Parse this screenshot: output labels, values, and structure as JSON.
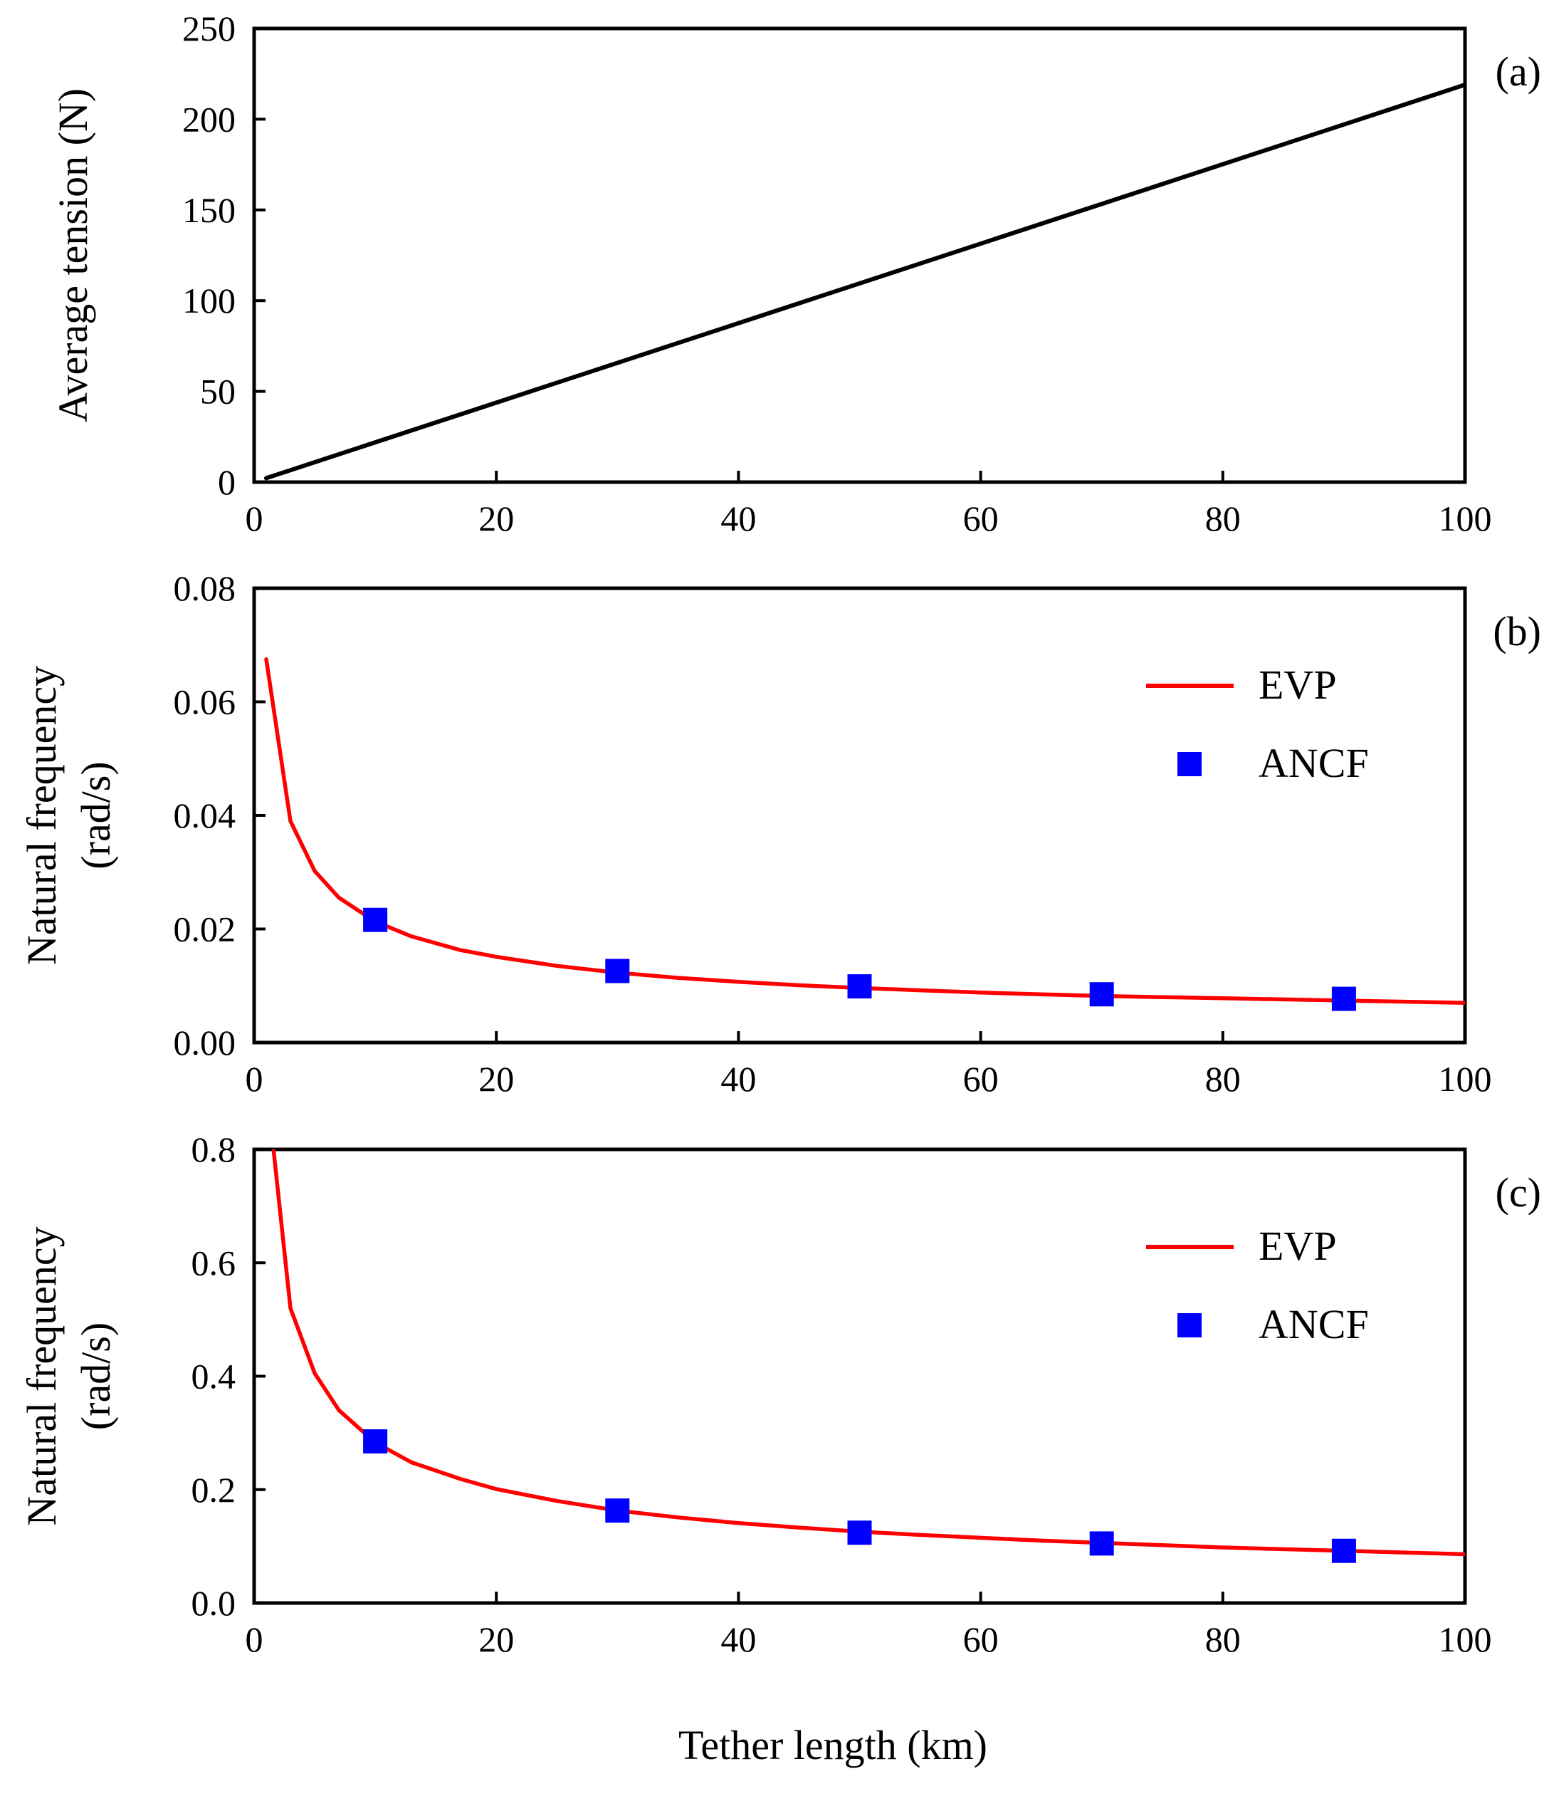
{
  "shared_xlabel": "Tether length (km)",
  "chart_data": [
    {
      "type": "line",
      "panel_label": "(a)",
      "ylabel_lines": [
        "Average tension (N)"
      ],
      "xlim": [
        0,
        100
      ],
      "ylim": [
        0,
        250
      ],
      "xticks": [
        0,
        20,
        40,
        60,
        80,
        100
      ],
      "yticks": [
        0,
        50,
        100,
        150,
        200,
        250
      ],
      "ytick_decimals": 0,
      "grid": false,
      "legend": null,
      "series": [
        {
          "name": "Average tension",
          "kind": "line",
          "color": "#000000",
          "x": [
            1,
            100
          ],
          "y": [
            2.2,
            219
          ]
        }
      ]
    },
    {
      "type": "line",
      "panel_label": "(b)",
      "ylabel_lines": [
        "Natural frequency",
        "(rad/s)"
      ],
      "xlim": [
        0,
        100
      ],
      "ylim": [
        0,
        0.08
      ],
      "xticks": [
        0,
        20,
        40,
        60,
        80,
        100
      ],
      "yticks": [
        0,
        0.02,
        0.04,
        0.06,
        0.08
      ],
      "ytick_decimals": 2,
      "grid": false,
      "legend": "top-right",
      "series": [
        {
          "name": "EVP",
          "kind": "line",
          "color": "#ff0000",
          "x": [
            1,
            3,
            5,
            7,
            10,
            13,
            17,
            20,
            25,
            30,
            35,
            40,
            45,
            50,
            55,
            60,
            65,
            70,
            75,
            80,
            85,
            90,
            95,
            100
          ],
          "y": [
            0.0675,
            0.039,
            0.0302,
            0.0255,
            0.0213,
            0.0187,
            0.0163,
            0.0151,
            0.0135,
            0.0123,
            0.0114,
            0.0107,
            0.0101,
            0.0096,
            0.0092,
            0.0088,
            0.0085,
            0.0082,
            0.008,
            0.0078,
            0.0076,
            0.0074,
            0.0072,
            0.007
          ]
        },
        {
          "name": "ANCF",
          "kind": "markers",
          "color": "#0000ff",
          "x": [
            10,
            30,
            50,
            70,
            90
          ],
          "y": [
            0.0216,
            0.0126,
            0.0099,
            0.0085,
            0.0077
          ]
        }
      ]
    },
    {
      "type": "line",
      "panel_label": "(c)",
      "ylabel_lines": [
        "Natural frequency",
        "(rad/s)"
      ],
      "xlim": [
        0,
        100
      ],
      "ylim": [
        0,
        0.8
      ],
      "xticks": [
        0,
        20,
        40,
        60,
        80,
        100
      ],
      "yticks": [
        0.0,
        0.2,
        0.4,
        0.6,
        0.8
      ],
      "ytick_decimals": 1,
      "grid": false,
      "legend": "top-right",
      "series": [
        {
          "name": "EVP",
          "kind": "line",
          "color": "#ff0000",
          "x": [
            1.6,
            3,
            5,
            7,
            10,
            13,
            17,
            20,
            25,
            30,
            35,
            40,
            45,
            50,
            55,
            60,
            65,
            70,
            75,
            80,
            85,
            90,
            95,
            100
          ],
          "y": [
            0.8,
            0.52,
            0.405,
            0.34,
            0.283,
            0.248,
            0.219,
            0.201,
            0.18,
            0.163,
            0.151,
            0.141,
            0.133,
            0.126,
            0.12,
            0.115,
            0.11,
            0.106,
            0.102,
            0.098,
            0.095,
            0.092,
            0.089,
            0.086
          ]
        },
        {
          "name": "ANCF",
          "kind": "markers",
          "color": "#0000ff",
          "x": [
            10,
            30,
            50,
            70,
            90
          ],
          "y": [
            0.285,
            0.163,
            0.124,
            0.105,
            0.092
          ]
        }
      ]
    }
  ]
}
